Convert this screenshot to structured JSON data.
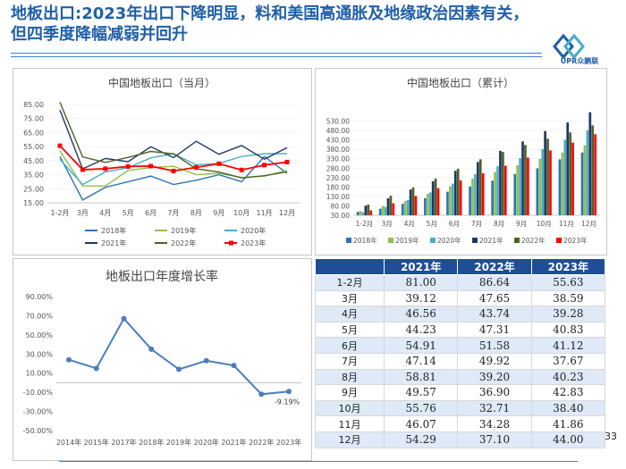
{
  "page": {
    "title": "地板出口:2023年出口下降明显，料和美国高通胀及地缘政治因素有关，但四季度降幅减弱并回升",
    "logo_text": "UPR众鹏联",
    "page_number": "33"
  },
  "colors": {
    "s2018": "#2e75b6",
    "s2019": "#92c04f",
    "s2020": "#4bacc6",
    "s2021": "#1f3864",
    "s2022": "#4f6228",
    "s2023": "#ff0000",
    "growth": "#4a7ebb",
    "header": "#1f4e96",
    "title": "#1f5fa8"
  },
  "chart_data": [
    {
      "type": "line",
      "title": "中国地板出口（当月）",
      "categories": [
        "1-2月",
        "3月",
        "4月",
        "5月",
        "6月",
        "7月",
        "8月",
        "9月",
        "10月",
        "11月",
        "12月"
      ],
      "yticks": [
        "85.00",
        "75.00",
        "65.00",
        "55.00",
        "45.00",
        "35.00",
        "25.00",
        "15.00"
      ],
      "ylim": [
        15,
        85
      ],
      "series": [
        {
          "name": "2018年",
          "color_key": "s2018",
          "values": [
            48,
            17,
            26,
            30,
            34,
            28,
            31,
            35,
            30,
            48,
            36
          ]
        },
        {
          "name": "2019年",
          "color_key": "s2019",
          "values": [
            52,
            27,
            27,
            38,
            40,
            41,
            35,
            36,
            33,
            34,
            38
          ]
        },
        {
          "name": "2020年",
          "color_key": "s2020",
          "values": [
            46,
            28,
            37,
            40,
            47,
            50,
            42,
            43,
            48,
            50,
            50
          ]
        },
        {
          "name": "2021年",
          "color_key": "s2021",
          "values": [
            81.0,
            39.12,
            46.56,
            44.23,
            54.91,
            47.14,
            58.81,
            49.57,
            55.76,
            46.07,
            54.29
          ]
        },
        {
          "name": "2022年",
          "color_key": "s2022",
          "values": [
            86.64,
            47.65,
            43.74,
            47.31,
            51.58,
            49.92,
            39.2,
            36.9,
            32.71,
            34.28,
            37.1
          ]
        },
        {
          "name": "2023年",
          "color_key": "s2023",
          "values": [
            55.63,
            38.59,
            39.28,
            40.83,
            41.12,
            37.67,
            40.23,
            42.83,
            38.4,
            41.86,
            44.0
          ]
        }
      ]
    },
    {
      "type": "bar",
      "title": "中国地板出口（累计）",
      "categories": [
        "1-2月",
        "3月",
        "4月",
        "5月",
        "6月",
        "7月",
        "8月",
        "9月",
        "10月",
        "11月",
        "12月"
      ],
      "yticks": [
        "530.00",
        "480.00",
        "430.00",
        "380.00",
        "330.00",
        "280.00",
        "230.00",
        "180.00",
        "130.00",
        "80.00",
        "30.00"
      ],
      "ylim": [
        30,
        580
      ],
      "series": [
        {
          "name": "2018年",
          "color_key": "s2018",
          "values": [
            48,
            65,
            91,
            121,
            155,
            183,
            214,
            249,
            279,
            327,
            363
          ]
        },
        {
          "name": "2019年",
          "color_key": "s2019",
          "values": [
            52,
            79,
            106,
            144,
            184,
            225,
            260,
            296,
            329,
            363,
            401
          ]
        },
        {
          "name": "2020年",
          "color_key": "s2020",
          "values": [
            46,
            74,
            111,
            151,
            198,
            248,
            290,
            333,
            381,
            431,
            481
          ]
        },
        {
          "name": "2021年",
          "color_key": "s2021",
          "values": [
            81,
            120,
            167,
            211,
            266,
            313,
            372,
            422,
            477,
            523,
            577
          ]
        },
        {
          "name": "2022年",
          "color_key": "s2022",
          "values": [
            87,
            134,
            178,
            225,
            277,
            327,
            366,
            403,
            436,
            470,
            507
          ]
        },
        {
          "name": "2023年",
          "color_key": "s2023",
          "values": [
            56,
            94,
            133,
            174,
            215,
            253,
            293,
            336,
            374,
            416,
            460
          ]
        }
      ]
    },
    {
      "type": "line",
      "title": "地板出口年度增长率",
      "categories": [
        "2014年",
        "2015年",
        "2017年",
        "2018年",
        "2019年",
        "2020年",
        "2021年",
        "2022年",
        "2023年"
      ],
      "yticks": [
        "90.00%",
        "70.00%",
        "50.00%",
        "30.00%",
        "10.00%",
        "-10.00%",
        "-30.00%",
        "-50.00%"
      ],
      "ylim": [
        -50,
        90
      ],
      "series": [
        {
          "name": "增长率",
          "color_key": "growth",
          "values": [
            24,
            15,
            67,
            35,
            14,
            23,
            18,
            -12,
            -9.19
          ]
        }
      ],
      "annotation": "-9.19%"
    }
  ],
  "table": {
    "headers": [
      "",
      "2021年",
      "2022年",
      "2023年"
    ],
    "rows": [
      [
        "1-2月",
        "81.00",
        "86.64",
        "55.63"
      ],
      [
        "3月",
        "39.12",
        "47.65",
        "38.59"
      ],
      [
        "4月",
        "46.56",
        "43.74",
        "39.28"
      ],
      [
        "5月",
        "44.23",
        "47.31",
        "40.83"
      ],
      [
        "6月",
        "54.91",
        "51.58",
        "41.12"
      ],
      [
        "7月",
        "47.14",
        "49.92",
        "37.67"
      ],
      [
        "8月",
        "58.81",
        "39.20",
        "40.23"
      ],
      [
        "9月",
        "49.57",
        "36.90",
        "42.83"
      ],
      [
        "10月",
        "55.76",
        "32.71",
        "38.40"
      ],
      [
        "11月",
        "46.07",
        "34.28",
        "41.86"
      ],
      [
        "12月",
        "54.29",
        "37.10",
        "44.00"
      ]
    ]
  }
}
